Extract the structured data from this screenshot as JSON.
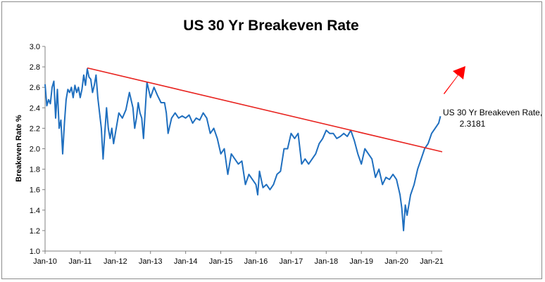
{
  "chart_data": {
    "type": "line",
    "title": "US 30 Yr Breakeven Rate",
    "xlabel": "",
    "ylabel": "Breakeven Rate %",
    "ylim": [
      1.0,
      3.0
    ],
    "yticks": [
      "1.0",
      "1.2",
      "1.4",
      "1.6",
      "1.8",
      "2.0",
      "2.2",
      "2.4",
      "2.6",
      "2.8",
      "3.0"
    ],
    "xticks": [
      "Jan-10",
      "Jan-11",
      "Jan-12",
      "Jan-13",
      "Jan-14",
      "Jan-15",
      "Jan-16",
      "Jan-17",
      "Jan-18",
      "Jan-19",
      "Jan-20",
      "Jan-21"
    ],
    "xlim": [
      2010.0,
      2021.3
    ],
    "grid": false,
    "series": [
      {
        "name": "US 30 Yr Breakeven Rate",
        "color": "#1f6fbf",
        "x": [
          2010.0,
          2010.05,
          2010.1,
          2010.15,
          2010.2,
          2010.25,
          2010.3,
          2010.35,
          2010.4,
          2010.45,
          2010.5,
          2010.55,
          2010.6,
          2010.65,
          2010.7,
          2010.75,
          2010.8,
          2010.85,
          2010.9,
          2010.95,
          2011.0,
          2011.05,
          2011.1,
          2011.15,
          2011.2,
          2011.25,
          2011.3,
          2011.35,
          2011.4,
          2011.45,
          2011.5,
          2011.55,
          2011.6,
          2011.65,
          2011.7,
          2011.75,
          2011.8,
          2011.85,
          2011.9,
          2011.95,
          2012.0,
          2012.1,
          2012.2,
          2012.3,
          2012.4,
          2012.5,
          2012.55,
          2012.6,
          2012.65,
          2012.7,
          2012.75,
          2012.8,
          2012.9,
          2013.0,
          2013.1,
          2013.2,
          2013.3,
          2013.4,
          2013.45,
          2013.5,
          2013.6,
          2013.7,
          2013.8,
          2013.9,
          2014.0,
          2014.1,
          2014.2,
          2014.3,
          2014.4,
          2014.5,
          2014.6,
          2014.7,
          2014.8,
          2014.9,
          2015.0,
          2015.1,
          2015.2,
          2015.3,
          2015.4,
          2015.5,
          2015.6,
          2015.7,
          2015.8,
          2015.9,
          2016.0,
          2016.05,
          2016.1,
          2016.2,
          2016.3,
          2016.4,
          2016.5,
          2016.6,
          2016.7,
          2016.8,
          2016.9,
          2017.0,
          2017.1,
          2017.2,
          2017.3,
          2017.4,
          2017.5,
          2017.6,
          2017.7,
          2017.8,
          2017.9,
          2018.0,
          2018.1,
          2018.2,
          2018.3,
          2018.4,
          2018.5,
          2018.6,
          2018.7,
          2018.8,
          2018.9,
          2019.0,
          2019.1,
          2019.2,
          2019.3,
          2019.4,
          2019.5,
          2019.6,
          2019.7,
          2019.8,
          2019.9,
          2020.0,
          2020.1,
          2020.15,
          2020.2,
          2020.25,
          2020.3,
          2020.4,
          2020.5,
          2020.6,
          2020.7,
          2020.8,
          2020.9,
          2021.0,
          2021.1,
          2021.2,
          2021.25
        ],
        "values": [
          2.63,
          2.42,
          2.48,
          2.44,
          2.6,
          2.66,
          2.3,
          2.58,
          2.2,
          2.28,
          1.95,
          2.25,
          2.48,
          2.58,
          2.55,
          2.6,
          2.5,
          2.62,
          2.55,
          2.6,
          2.5,
          2.58,
          2.72,
          2.62,
          2.78,
          2.7,
          2.68,
          2.55,
          2.62,
          2.72,
          2.5,
          2.35,
          2.2,
          1.9,
          2.15,
          2.4,
          2.2,
          2.1,
          2.2,
          2.05,
          2.15,
          2.35,
          2.3,
          2.38,
          2.55,
          2.4,
          2.2,
          2.3,
          2.45,
          2.35,
          2.3,
          2.1,
          2.65,
          2.5,
          2.6,
          2.52,
          2.45,
          2.45,
          2.35,
          2.15,
          2.3,
          2.35,
          2.3,
          2.32,
          2.3,
          2.33,
          2.25,
          2.3,
          2.28,
          2.35,
          2.3,
          2.15,
          2.2,
          2.1,
          1.95,
          2.0,
          1.75,
          1.95,
          1.9,
          1.85,
          1.88,
          1.65,
          1.75,
          1.7,
          1.65,
          1.55,
          1.78,
          1.62,
          1.65,
          1.6,
          1.65,
          1.75,
          1.78,
          2.0,
          2.0,
          2.15,
          2.1,
          2.15,
          1.85,
          1.9,
          1.85,
          1.9,
          1.95,
          2.05,
          2.1,
          2.18,
          2.15,
          2.15,
          2.1,
          2.12,
          2.15,
          2.12,
          2.18,
          2.08,
          1.95,
          1.85,
          2.0,
          1.95,
          1.9,
          1.72,
          1.8,
          1.65,
          1.72,
          1.7,
          1.75,
          1.7,
          1.55,
          1.42,
          1.2,
          1.45,
          1.35,
          1.55,
          1.65,
          1.8,
          1.9,
          2.0,
          2.05,
          2.15,
          2.2,
          2.25,
          2.3181
        ]
      },
      {
        "name": "Trend line",
        "color": "#e8231f",
        "x": [
          2011.2,
          2021.3
        ],
        "values": [
          2.79,
          1.97
        ]
      }
    ],
    "annotation": {
      "line1": "US 30 Yr Breakeven Rate,",
      "line2": "2.3181"
    },
    "arrow_color": "#ff0000"
  }
}
